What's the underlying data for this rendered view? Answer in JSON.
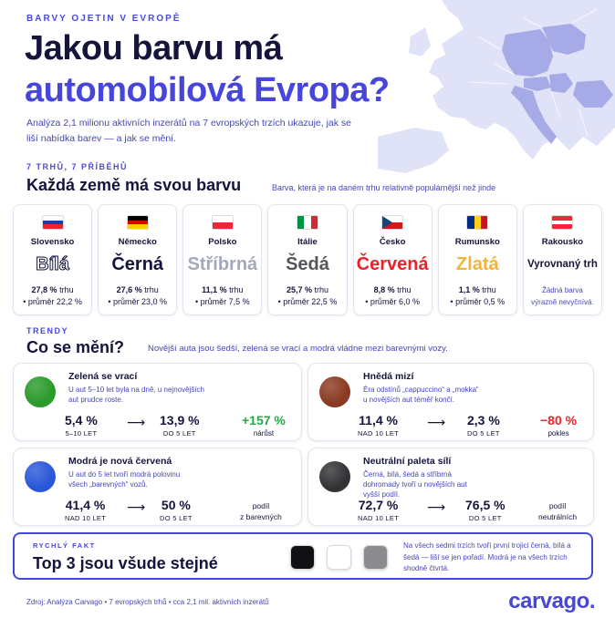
{
  "header": {
    "kicker": "BARVY OJETIN V EVROPĚ",
    "title_line1": "Jakou barvu má",
    "title_line2": "automobilová Evropa?",
    "intro": "Analýza 2,1 milionu aktivních inzerátů na 7 evropských trzích ukazuje, jak se liší nabídka barev — a jak se mění."
  },
  "countries_section": {
    "kicker": "7 TRHŮ, 7 PŘÍBĚHŮ",
    "title": "Každá země má svou barvu",
    "note": "Barva, která je na daném trhu relativně populárnější než jinde"
  },
  "countries": [
    {
      "name": "Slovensko",
      "color_name": "Bílá",
      "color_hex": "#ffffff",
      "pct": "27,8 %",
      "pct_suffix": " trhu",
      "avg": "• průměr 22,2 %",
      "flag": [
        "#ffffff",
        "#1a3fa8",
        "#e8252b"
      ]
    },
    {
      "name": "Německo",
      "color_name": "Černá",
      "color_hex": "#14143c",
      "pct": "27,6 %",
      "pct_suffix": " trhu",
      "avg": "• průměr 23,0 %",
      "flag": [
        "#000000",
        "#dd0000",
        "#ffcc00"
      ]
    },
    {
      "name": "Polsko",
      "color_name": "Stříbrná",
      "color_hex": "#a4a8b8",
      "pct": "11,1 %",
      "pct_suffix": " trhu",
      "avg": "• průměr 7,5 %",
      "flag": [
        "#ffffff",
        "#e32b3c"
      ]
    },
    {
      "name": "Itálie",
      "color_name": "Šedá",
      "color_hex": "#55555a",
      "pct": "25,7 %",
      "pct_suffix": " trhu",
      "avg": "• průměr 22,5 %",
      "flag": [
        "#009246",
        "#ffffff",
        "#ce2b37"
      ]
    },
    {
      "name": "Česko",
      "color_name": "Červená",
      "color_hex": "#e8232b",
      "pct": "8,8 %",
      "pct_suffix": " trhu",
      "avg": "• průměr 6,0 %",
      "flag": [
        "#ffffff",
        "#d7141a",
        "#11457e"
      ]
    },
    {
      "name": "Rumunsko",
      "color_name": "Zlatá",
      "color_hex": "#f2b33a",
      "pct": "1,1 %",
      "pct_suffix": " trhu",
      "avg": "• průměr 0,5 %",
      "flag": [
        "#002b7f",
        "#fcd116",
        "#ce1126"
      ]
    },
    {
      "name": "Rakousko",
      "color_name": "Vyrovnaný trh",
      "color_hex": "#14143c",
      "pct": "",
      "pct_suffix": "",
      "avg": "Žádná barva výrazně nevyčnívá.",
      "flag": [
        "#ed2939",
        "#ffffff",
        "#ed2939"
      ]
    }
  ],
  "trends_section": {
    "kicker": "TRENDY",
    "title": "Co se mění?",
    "note": "Novější auta jsou šedší, zelená se vrací a modrá vládne mezi barevnými vozy."
  },
  "trends": {
    "green": {
      "title": "Zelená se vrací",
      "desc": "U aut 5–10 let byla na dně, u nejnovějších aut prudce roste.",
      "from_value": "5,4 %",
      "from_label": "5–10 LET",
      "to_value": "13,9 %",
      "to_label": "DO 5 LET",
      "result_value": "+157 %",
      "result_label": "nárůst",
      "ball": "#2a9a2a",
      "result_color": "#22a845"
    },
    "brown": {
      "title": "Hnědá mizí",
      "desc": "Éra odstínů „cappuccino“ a „mokka“ u novějších aut téměř končí.",
      "from_value": "11,4 %",
      "from_label": "NAD 10 LET",
      "to_value": "2,3 %",
      "to_label": "DO 5 LET",
      "result_value": "−80 %",
      "result_label": "pokles",
      "ball": "#8a3a22",
      "result_color": "#e8232b"
    },
    "blue": {
      "title": "Modrá je nová červená",
      "desc": "U aut do 5 let tvoří modrá polovinu všech „barevných“ vozů.",
      "from_value": "41,4 %",
      "from_label": "NAD 10 LET",
      "to_value": "50 %",
      "to_label": "DO 5 LET",
      "result_value": "podíl",
      "result_label": "z barevných",
      "ball": "#2a56d8",
      "result_color": "#14143c"
    },
    "neutral": {
      "title": "Neutrální paleta sílí",
      "desc": "Černá, bílá, šedá a stříbrná dohromady tvoří u novějších aut vyšší podíl.",
      "from_value": "72,7 %",
      "from_label": "NAD 10 LET",
      "to_value": "76,5 %",
      "to_label": "DO 5 LET",
      "result_value": "podíl",
      "result_label": "neutrálních",
      "ball": "#333336",
      "result_color": "#14143c"
    }
  },
  "fact": {
    "kicker": "RYCHLÝ FAKT",
    "title": "Top 3 jsou všude stejné",
    "text": "Na všech sedmi trzích tvoří první trojici černá, bílá a šedá — liší se jen pořadí. Modrá je na všech trzích shodně čtvrtá.",
    "swatches": [
      "#111114",
      "#ffffff",
      "#8c8c8e"
    ]
  },
  "footer": {
    "source": "Zdroj: Analýza Carvago   •   7 evropských trhů   •   cca 2,1 mil. aktivních inzerátů",
    "logo": "carvago."
  },
  "colors": {
    "accent": "#4646d8",
    "navy": "#14143c",
    "map": "#c8cbef"
  }
}
